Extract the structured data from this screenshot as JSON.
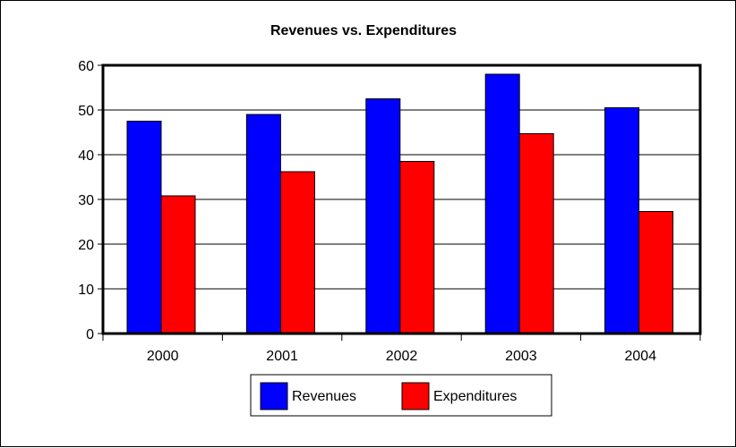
{
  "chart_data": {
    "type": "bar",
    "title": "Revenues vs. Expenditures",
    "xlabel": "",
    "ylabel": "",
    "categories": [
      "2000",
      "2001",
      "2002",
      "2003",
      "2004"
    ],
    "series": [
      {
        "name": "Revenues",
        "color": "#0000ff",
        "values": [
          47.5,
          49.0,
          52.5,
          58.0,
          50.5
        ]
      },
      {
        "name": "Expenditures",
        "color": "#ff0000",
        "values": [
          30.8,
          36.2,
          38.5,
          44.7,
          27.3
        ]
      }
    ],
    "ylim": [
      0,
      60
    ],
    "yticks": [
      "0",
      "10",
      "20",
      "30",
      "40",
      "50",
      "60"
    ],
    "grid": true,
    "legend_position": "bottom"
  }
}
